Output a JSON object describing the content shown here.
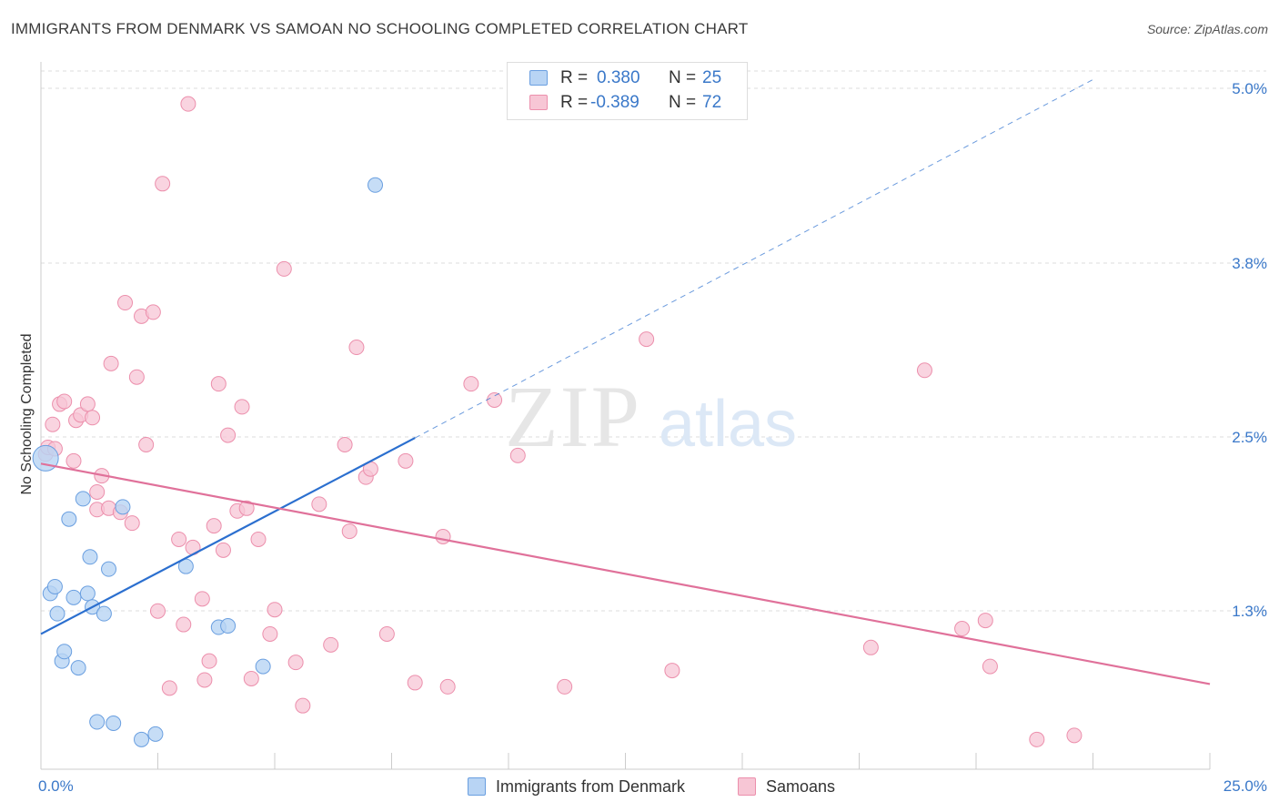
{
  "title": "IMMIGRANTS FROM DENMARK VS SAMOAN NO SCHOOLING COMPLETED CORRELATION CHART",
  "source": "Source: ZipAtlas.com",
  "watermark": {
    "zip": "ZIP",
    "atlas": "atlas"
  },
  "legend_top": {
    "rows": [
      {
        "r_label": "R =",
        "r_value": "0.380",
        "n_label": "N =",
        "n_value": "25"
      },
      {
        "r_label": "R =",
        "r_value": "-0.389",
        "n_label": "N =",
        "n_value": "72"
      }
    ]
  },
  "legend_bottom": {
    "series1": "Immigrants from Denmark",
    "series2": "Samoans"
  },
  "colors": {
    "blue_fill": "#b8d4f4",
    "blue_stroke": "#6a9fe0",
    "blue_line": "#2b6fcf",
    "pink_fill": "#f7c6d5",
    "pink_stroke": "#ec8fac",
    "pink_line": "#e0719a",
    "tick": "#3a78c9",
    "grid": "#dddddd"
  },
  "chart_data": {
    "type": "scatter",
    "title": "IMMIGRANTS FROM DENMARK VS SAMOAN NO SCHOOLING COMPLETED CORRELATION CHART",
    "xlabel": "",
    "ylabel": "No Schooling Completed",
    "x_ticks": [
      "0.0%",
      "25.0%"
    ],
    "y_ticks": [
      "5.0%",
      "3.8%",
      "2.5%",
      "1.3%"
    ],
    "xlim": [
      0,
      25
    ],
    "ylim": [
      0,
      5.15
    ],
    "grid": "horizontal dashed",
    "legend_position": "bottom",
    "series": [
      {
        "name": "Immigrants from Denmark",
        "points": [
          [
            0.1,
            2.3
          ],
          [
            0.2,
            1.3
          ],
          [
            0.3,
            1.35
          ],
          [
            0.35,
            1.15
          ],
          [
            0.45,
            0.8
          ],
          [
            0.5,
            0.87
          ],
          [
            0.6,
            1.85
          ],
          [
            0.7,
            1.27
          ],
          [
            0.8,
            0.75
          ],
          [
            0.9,
            2.0
          ],
          [
            1.0,
            1.3
          ],
          [
            1.05,
            1.57
          ],
          [
            1.1,
            1.2
          ],
          [
            1.2,
            0.35
          ],
          [
            1.35,
            1.15
          ],
          [
            1.45,
            1.48
          ],
          [
            1.55,
            0.34
          ],
          [
            1.75,
            1.94
          ],
          [
            2.15,
            0.22
          ],
          [
            2.45,
            0.26
          ],
          [
            3.1,
            1.5
          ],
          [
            3.8,
            1.05
          ],
          [
            4.0,
            1.06
          ],
          [
            4.75,
            0.76
          ],
          [
            7.15,
            4.32
          ]
        ],
        "trend": {
          "x": [
            0,
            8.0
          ],
          "y": [
            1.0,
            2.45
          ]
        },
        "trend_dashed": {
          "x": [
            8.0,
            22.5
          ],
          "y": [
            2.45,
            5.1
          ]
        }
      },
      {
        "name": "Samoans",
        "points": [
          [
            0.1,
            2.33
          ],
          [
            0.15,
            2.38
          ],
          [
            0.25,
            2.55
          ],
          [
            0.3,
            2.37
          ],
          [
            0.4,
            2.7
          ],
          [
            0.5,
            2.72
          ],
          [
            0.7,
            2.28
          ],
          [
            0.75,
            2.58
          ],
          [
            0.85,
            2.62
          ],
          [
            1.0,
            2.7
          ],
          [
            1.1,
            2.6
          ],
          [
            1.2,
            2.05
          ],
          [
            1.2,
            1.92
          ],
          [
            1.3,
            2.17
          ],
          [
            1.45,
            1.93
          ],
          [
            1.5,
            3.0
          ],
          [
            1.7,
            1.9
          ],
          [
            1.8,
            3.45
          ],
          [
            1.95,
            1.82
          ],
          [
            2.05,
            2.9
          ],
          [
            2.15,
            3.35
          ],
          [
            2.25,
            2.4
          ],
          [
            2.4,
            3.38
          ],
          [
            2.5,
            1.17
          ],
          [
            2.6,
            4.33
          ],
          [
            2.75,
            0.6
          ],
          [
            2.95,
            1.7
          ],
          [
            3.05,
            1.07
          ],
          [
            3.15,
            4.92
          ],
          [
            3.25,
            1.64
          ],
          [
            3.45,
            1.26
          ],
          [
            3.5,
            0.66
          ],
          [
            3.6,
            0.8
          ],
          [
            3.7,
            1.8
          ],
          [
            3.8,
            2.85
          ],
          [
            3.9,
            1.62
          ],
          [
            4.0,
            2.47
          ],
          [
            4.2,
            1.91
          ],
          [
            4.3,
            2.68
          ],
          [
            4.4,
            1.93
          ],
          [
            4.5,
            0.67
          ],
          [
            4.65,
            1.7
          ],
          [
            4.9,
            1.0
          ],
          [
            5.0,
            1.18
          ],
          [
            5.2,
            3.7
          ],
          [
            5.45,
            0.79
          ],
          [
            5.6,
            0.47
          ],
          [
            5.95,
            1.96
          ],
          [
            6.2,
            0.92
          ],
          [
            6.5,
            2.4
          ],
          [
            6.6,
            1.76
          ],
          [
            6.75,
            3.12
          ],
          [
            6.95,
            2.16
          ],
          [
            7.05,
            2.22
          ],
          [
            7.4,
            1.0
          ],
          [
            7.8,
            2.28
          ],
          [
            8.0,
            0.64
          ],
          [
            8.6,
            1.72
          ],
          [
            8.7,
            0.61
          ],
          [
            9.2,
            2.85
          ],
          [
            9.7,
            2.73
          ],
          [
            10.2,
            2.32
          ],
          [
            11.2,
            0.61
          ],
          [
            12.95,
            3.18
          ],
          [
            13.5,
            0.73
          ],
          [
            17.75,
            0.9
          ],
          [
            18.9,
            2.95
          ],
          [
            19.7,
            1.04
          ],
          [
            20.2,
            1.1
          ],
          [
            20.3,
            0.76
          ],
          [
            21.3,
            0.22
          ],
          [
            22.1,
            0.25
          ]
        ],
        "trend": {
          "x": [
            0,
            25
          ],
          "y": [
            2.26,
            0.63
          ]
        }
      }
    ]
  }
}
